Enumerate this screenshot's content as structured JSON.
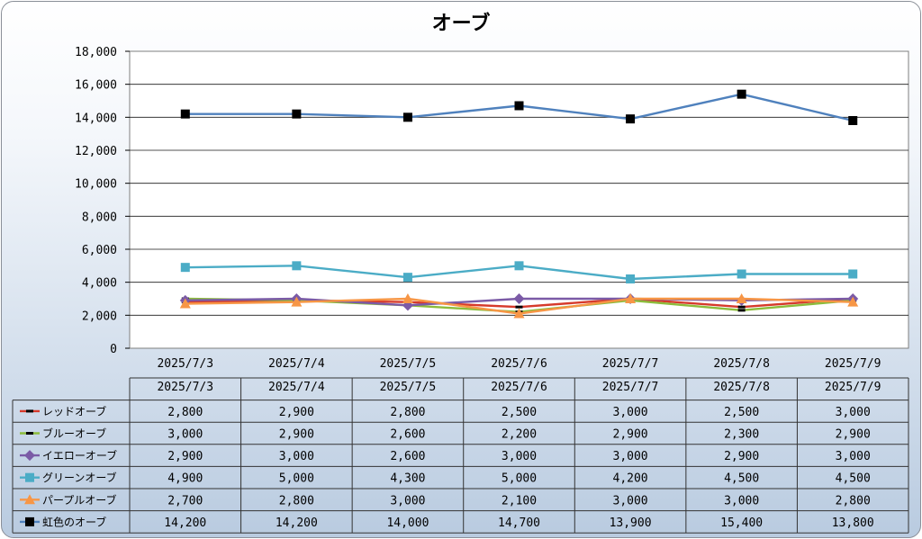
{
  "chart_data": {
    "type": "line",
    "title": "オーブ",
    "xlabel": "",
    "ylabel": "",
    "ylim": [
      0,
      18000
    ],
    "yticks": [
      "0",
      "2,000",
      "4,000",
      "6,000",
      "8,000",
      "10,000",
      "12,000",
      "14,000",
      "16,000",
      "18,000"
    ],
    "categories": [
      "2025/7/3",
      "2025/7/4",
      "2025/7/5",
      "2025/7/6",
      "2025/7/7",
      "2025/7/8",
      "2025/7/9"
    ],
    "grid": true,
    "legend": "data-table-bottom",
    "series": [
      {
        "name": "レッドオーブ",
        "color": "#d63a2b",
        "marker": "dash",
        "values": [
          2800,
          2900,
          2800,
          2500,
          3000,
          2500,
          3000
        ],
        "labels": [
          "2,800",
          "2,900",
          "2,800",
          "2,500",
          "3,000",
          "2,500",
          "3,000"
        ]
      },
      {
        "name": "ブルーオーブ",
        "color": "#8cbc3c",
        "marker": "dash",
        "values": [
          3000,
          2900,
          2600,
          2200,
          2900,
          2300,
          2900
        ],
        "labels": [
          "3,000",
          "2,900",
          "2,600",
          "2,200",
          "2,900",
          "2,300",
          "2,900"
        ]
      },
      {
        "name": "イエローオーブ",
        "color": "#7b5aa6",
        "marker": "diamond",
        "values": [
          2900,
          3000,
          2600,
          3000,
          3000,
          2900,
          3000
        ],
        "labels": [
          "2,900",
          "3,000",
          "2,600",
          "3,000",
          "3,000",
          "2,900",
          "3,000"
        ]
      },
      {
        "name": "グリーンオーブ",
        "color": "#4bacc6",
        "marker": "square",
        "values": [
          4900,
          5000,
          4300,
          5000,
          4200,
          4500,
          4500
        ],
        "labels": [
          "4,900",
          "5,000",
          "4,300",
          "5,000",
          "4,200",
          "4,500",
          "4,500"
        ]
      },
      {
        "name": "パープルオーブ",
        "color": "#f79646",
        "marker": "triangle",
        "values": [
          2700,
          2800,
          3000,
          2100,
          3000,
          3000,
          2800
        ],
        "labels": [
          "2,700",
          "2,800",
          "3,000",
          "2,100",
          "3,000",
          "3,000",
          "2,800"
        ]
      },
      {
        "name": "虹色のオーブ",
        "color": "#4f81bd",
        "marker": "blacksquare",
        "values": [
          14200,
          14200,
          14000,
          14700,
          13900,
          15400,
          13800
        ],
        "labels": [
          "14,200",
          "14,200",
          "14,000",
          "14,700",
          "13,900",
          "15,400",
          "13,800"
        ]
      }
    ]
  }
}
